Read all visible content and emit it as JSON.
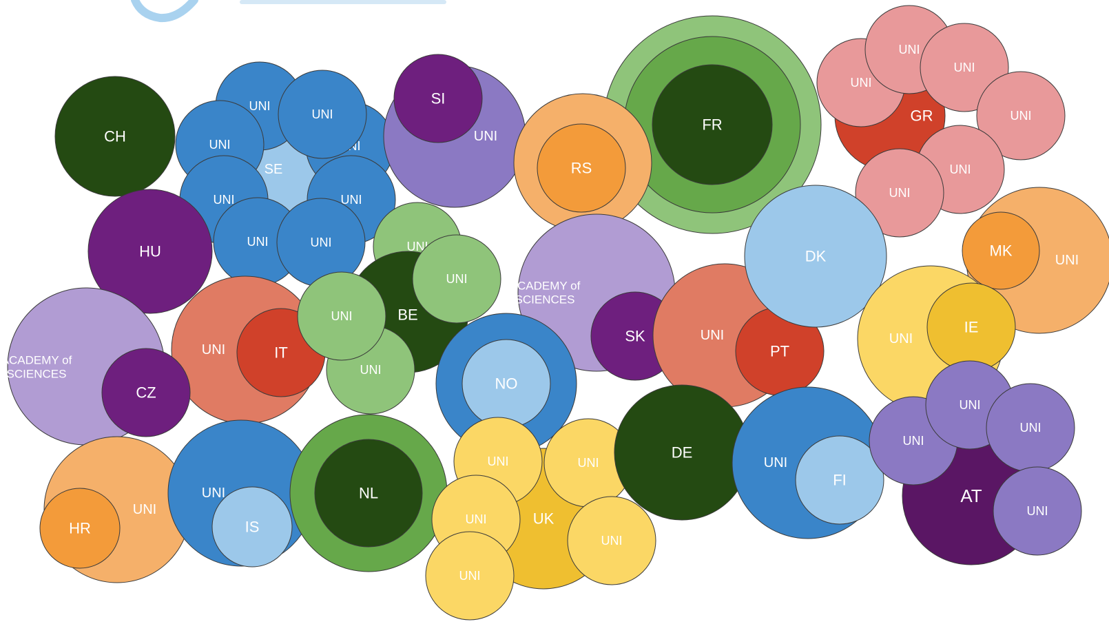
{
  "colors": {
    "light_blue": "#9cc8ea",
    "blue": "#3a85c9",
    "dark_green": "#244a12",
    "mid_green": "#66a84a",
    "light_green": "#8fc47a",
    "purple": "#6e1f7e",
    "dark_purple": "#5a1664",
    "lavender": "#b19cd3",
    "violet": "#8b79c3",
    "orange": "#f39b3a",
    "light_orange": "#f5b06a",
    "red": "#d0412a",
    "salmon": "#e07b63",
    "pink": "#e8999a",
    "yellow": "#efbf30",
    "light_yellow": "#fbd765"
  },
  "logo": {
    "icon": "blue-swirl-logo-icon"
  },
  "countries": [
    {
      "code": "FR",
      "label": "FR",
      "color": "dark_green",
      "members": []
    },
    {
      "code": "GR",
      "label": "GR",
      "color": "red",
      "members": [
        "UNI",
        "UNI",
        "UNI",
        "UNI",
        "UNI",
        "UNI"
      ]
    },
    {
      "code": "CH",
      "label": "CH",
      "color": "dark_green",
      "members": []
    },
    {
      "code": "SE",
      "label": "SE",
      "color": "light_blue",
      "members": [
        "UNI",
        "UNI",
        "UNI",
        "UNI",
        "UNI",
        "UNI",
        "UNI",
        "UNI"
      ]
    },
    {
      "code": "SI",
      "label": "SI",
      "color": "purple",
      "members": [
        "UNI"
      ]
    },
    {
      "code": "RS",
      "label": "RS",
      "color": "orange",
      "members": []
    },
    {
      "code": "HU",
      "label": "HU",
      "color": "purple",
      "members": []
    },
    {
      "code": "BE",
      "label": "BE",
      "color": "dark_green",
      "members": [
        "UNI",
        "UNI",
        "UNI",
        "UNI"
      ]
    },
    {
      "code": "IT",
      "label": "IT",
      "color": "red",
      "members": [
        "UNI"
      ]
    },
    {
      "code": "CZ",
      "label": "CZ",
      "color": "purple",
      "members": [
        "ACADEMY of SCIENCES"
      ]
    },
    {
      "code": "SK",
      "label": "SK",
      "color": "purple",
      "members": [
        "ACADEMY of SCIENCES"
      ]
    },
    {
      "code": "NO",
      "label": "NO",
      "color": "light_blue",
      "members": []
    },
    {
      "code": "DK",
      "label": "DK",
      "color": "light_blue",
      "members": []
    },
    {
      "code": "PT",
      "label": "PT",
      "color": "red",
      "members": [
        "UNI"
      ]
    },
    {
      "code": "MK",
      "label": "MK",
      "color": "orange",
      "members": [
        "UNI"
      ]
    },
    {
      "code": "IE",
      "label": "IE",
      "color": "yellow",
      "members": [
        "UNI"
      ]
    },
    {
      "code": "HR",
      "label": "HR",
      "color": "orange",
      "members": [
        "UNI"
      ]
    },
    {
      "code": "IS",
      "label": "IS",
      "color": "light_blue",
      "members": [
        "UNI"
      ]
    },
    {
      "code": "NL",
      "label": "NL",
      "color": "dark_green",
      "members": []
    },
    {
      "code": "UK",
      "label": "UK",
      "color": "yellow",
      "members": [
        "UNI",
        "UNI",
        "UNI",
        "UNI",
        "UNI"
      ]
    },
    {
      "code": "DE",
      "label": "DE",
      "color": "dark_green",
      "members": []
    },
    {
      "code": "FI",
      "label": "FI",
      "color": "light_blue",
      "members": [
        "UNI"
      ]
    },
    {
      "code": "AT",
      "label": "AT",
      "color": "dark_purple",
      "members": [
        "UNI",
        "UNI",
        "UNI",
        "UNI"
      ]
    }
  ],
  "texts": {
    "uni": "UNI",
    "academy_line1": "ACADEMY of",
    "academy_line2": "SCIENCES"
  }
}
